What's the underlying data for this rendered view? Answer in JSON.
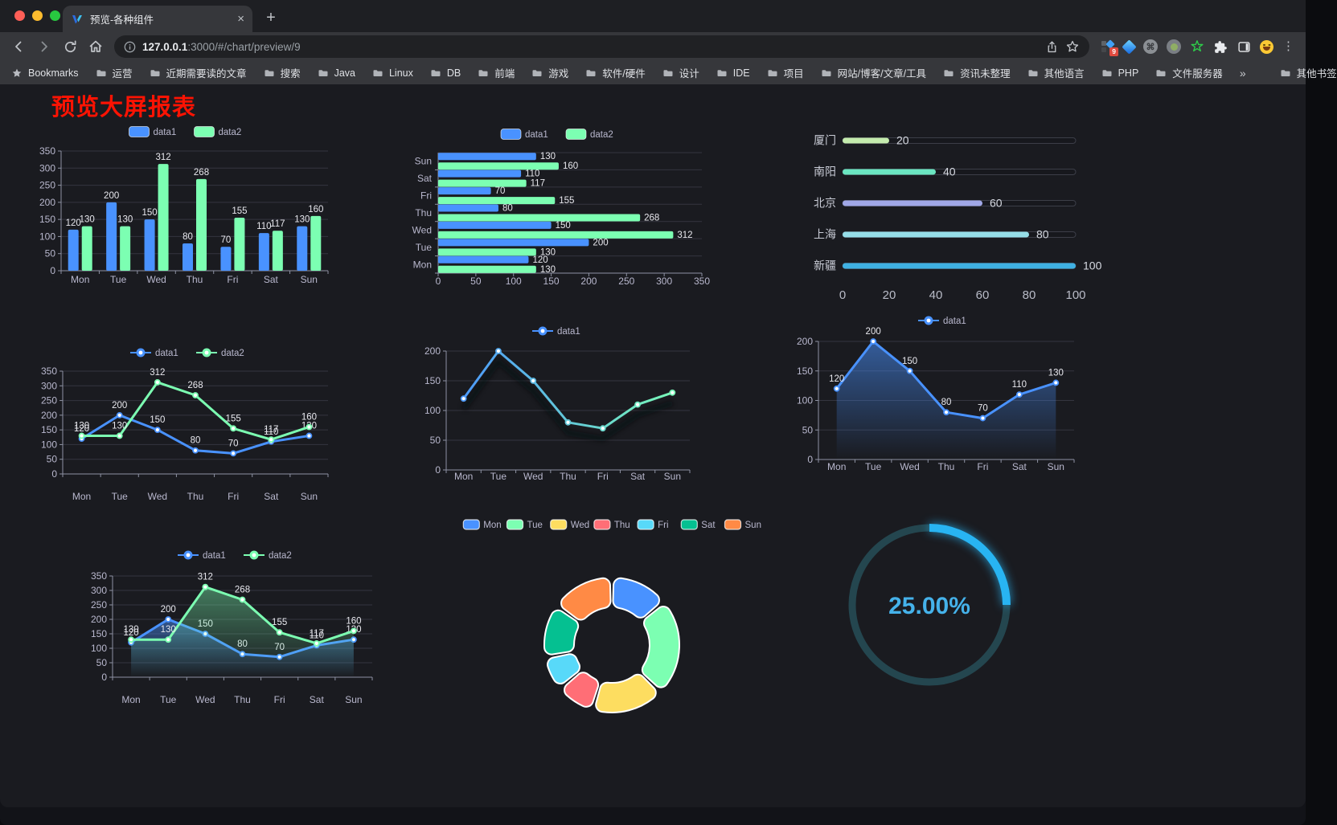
{
  "browser": {
    "tab_title": "预览-各种组件",
    "new_tab_label": "+",
    "close_label": "×",
    "url_host": "127.0.0.1",
    "url_rest": ":3000/#/chart/preview/9",
    "bookmarks_label": "Bookmarks",
    "bookmarks": [
      "运营",
      "近期需要读的文章",
      "搜索",
      "Java",
      "Linux",
      "DB",
      "前端",
      "游戏",
      "软件/硬件",
      "设计",
      "IDE",
      "项目",
      "网站/博客/文章/工具",
      "资讯未整理",
      "其他语言",
      "PHP",
      "文件服务器"
    ],
    "bookmarks_overflow": "»",
    "other_bookmarks": "其他书签",
    "extension_badge": "9",
    "menu_dots": "⋮"
  },
  "page": {
    "title": "预览大屏报表",
    "title_color": "#fb1303",
    "background": "#1a1b20"
  },
  "theme": {
    "palette": [
      "#4992ff",
      "#7cffb2",
      "#fddd60",
      "#ff6e76",
      "#58d9f9",
      "#05c091",
      "#ff8a45"
    ],
    "axis_text": "#b9b8ce",
    "grid_line": "#34353f",
    "axis_line": "#8e92a3",
    "data_label": "#e8e8ee"
  },
  "chart_data": [
    {
      "id": "bar-vertical",
      "type": "bar",
      "categories": [
        "Mon",
        "Tue",
        "Wed",
        "Thu",
        "Fri",
        "Sat",
        "Sun"
      ],
      "series": [
        {
          "name": "data1",
          "color": "#4992ff",
          "values": [
            120,
            200,
            150,
            80,
            70,
            110,
            130
          ]
        },
        {
          "name": "data2",
          "color": "#7cffb2",
          "values": [
            130,
            130,
            312,
            268,
            155,
            117,
            160
          ]
        }
      ],
      "ylim": [
        0,
        350
      ],
      "ytick_step": 50,
      "legend_position": "top",
      "grid": true
    },
    {
      "id": "bar-horizontal",
      "type": "hbar",
      "categories": [
        "Mon",
        "Tue",
        "Wed",
        "Thu",
        "Fri",
        "Sat",
        "Sun"
      ],
      "series": [
        {
          "name": "data1",
          "color": "#4992ff",
          "values": [
            120,
            200,
            150,
            80,
            70,
            110,
            130
          ]
        },
        {
          "name": "data2",
          "color": "#7cffb2",
          "values": [
            130,
            130,
            312,
            268,
            155,
            117,
            160
          ]
        }
      ],
      "xlim": [
        0,
        350
      ],
      "xtick_step": 50,
      "legend_position": "top",
      "grid": true
    },
    {
      "id": "progress-bars",
      "type": "progress",
      "max": 100,
      "axis_ticks": [
        0,
        20,
        40,
        60,
        80,
        100
      ],
      "items": [
        {
          "label": "厦门",
          "value": 20,
          "color": "#c4ebad"
        },
        {
          "label": "南阳",
          "value": 40,
          "color": "#6be6c1"
        },
        {
          "label": "北京",
          "value": 60,
          "color": "#a0a7e6"
        },
        {
          "label": "上海",
          "value": 80,
          "color": "#96dee8"
        },
        {
          "label": "新疆",
          "value": 100,
          "color": "#3fb1e3"
        }
      ]
    },
    {
      "id": "line-dual",
      "type": "line",
      "categories": [
        "Mon",
        "Tue",
        "Wed",
        "Thu",
        "Fri",
        "Sat",
        "Sun"
      ],
      "series": [
        {
          "name": "data1",
          "color": "#4992ff",
          "values": [
            120,
            200,
            150,
            80,
            70,
            110,
            130
          ],
          "labels": true
        },
        {
          "name": "data2",
          "color": "#7cffb2",
          "values": [
            130,
            130,
            312,
            268,
            155,
            117,
            160
          ],
          "labels": true
        }
      ],
      "ylim": [
        0,
        350
      ],
      "ytick_step": 50,
      "legend_position": "top",
      "grid": true
    },
    {
      "id": "line-gradient",
      "type": "line",
      "categories": [
        "Mon",
        "Tue",
        "Wed",
        "Thu",
        "Fri",
        "Sat",
        "Sun"
      ],
      "series": [
        {
          "name": "data1",
          "color": "#4992ff",
          "values": [
            120,
            200,
            150,
            80,
            70,
            110,
            130
          ]
        }
      ],
      "ylim": [
        0,
        200
      ],
      "ytick_step": 50,
      "stroke_gradient": [
        "#4992ff",
        "#7cffb2"
      ],
      "shadow": true,
      "legend_position": "top",
      "grid": true
    },
    {
      "id": "area-single",
      "type": "line",
      "categories": [
        "Mon",
        "Tue",
        "Wed",
        "Thu",
        "Fri",
        "Sat",
        "Sun"
      ],
      "series": [
        {
          "name": "data1",
          "color": "#4992ff",
          "values": [
            120,
            200,
            150,
            80,
            70,
            110,
            130
          ],
          "labels": true,
          "area": [
            "rgba(73,146,255,0.55)",
            "rgba(73,146,255,0)"
          ]
        }
      ],
      "ylim": [
        0,
        200
      ],
      "ytick_step": 50,
      "legend_position": "top",
      "grid": true
    },
    {
      "id": "area-dual",
      "type": "line",
      "categories": [
        "Mon",
        "Tue",
        "Wed",
        "Thu",
        "Fri",
        "Sat",
        "Sun"
      ],
      "series": [
        {
          "name": "data1",
          "color": "#4992ff",
          "values": [
            120,
            200,
            150,
            80,
            70,
            110,
            130
          ],
          "labels": true,
          "area": [
            "rgba(73,146,255,0.50)",
            "rgba(73,146,255,0)"
          ]
        },
        {
          "name": "data2",
          "color": "#7cffb2",
          "values": [
            130,
            130,
            312,
            268,
            155,
            117,
            160
          ],
          "labels": true,
          "area": [
            "rgba(124,255,178,0.42)",
            "rgba(124,255,178,0)"
          ]
        }
      ],
      "ylim": [
        0,
        350
      ],
      "ytick_step": 50,
      "legend_position": "top",
      "grid": true
    },
    {
      "id": "donut",
      "type": "donut",
      "categories": [
        "Mon",
        "Tue",
        "Wed",
        "Thu",
        "Fri",
        "Sat",
        "Sun"
      ],
      "values": [
        120,
        200,
        150,
        80,
        70,
        110,
        130
      ],
      "colors": [
        "#4992ff",
        "#7cffb2",
        "#fddd60",
        "#ff6e76",
        "#58d9f9",
        "#05c091",
        "#ff8a45"
      ],
      "border_color": "#ffffff",
      "legend_position": "top"
    },
    {
      "id": "gauge",
      "type": "gauge",
      "value": 25,
      "display": "25.00%",
      "arc_color": "#28b4f2",
      "text_color": "#45b2ea",
      "track_color": "#24464f"
    }
  ]
}
